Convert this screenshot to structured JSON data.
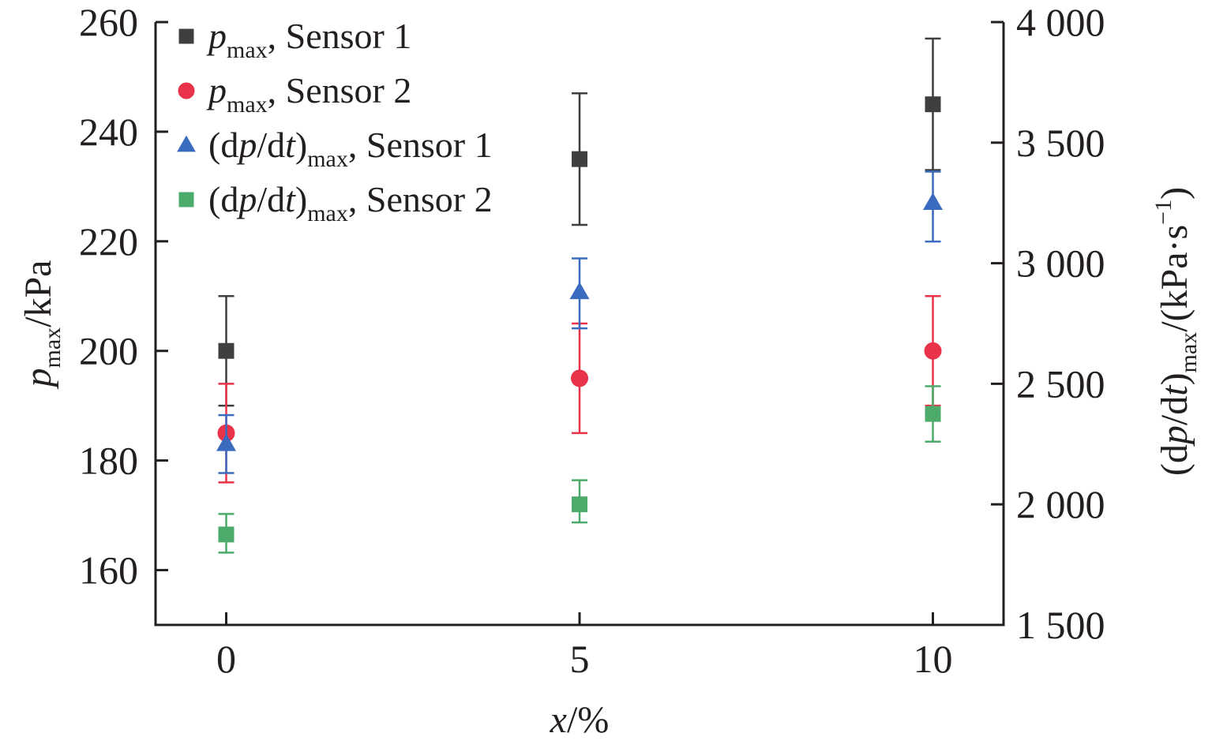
{
  "chart_data": {
    "type": "scatter",
    "title": "",
    "x": [
      0,
      5,
      10
    ],
    "xlabel": {
      "var": "x",
      "rest": "/%"
    },
    "ylabel_left": {
      "var": "p",
      "sub": "max",
      "rest": "/kPa"
    },
    "ylabel_right": {
      "pre": "(d",
      "var": "p",
      "mid": "/d",
      "var2": "t",
      "post": ")",
      "sub": "max",
      "rest": "/(kPa·s",
      "sup": "−1",
      "end": ")"
    },
    "xlim": [
      -1,
      11
    ],
    "ylim_left": [
      150,
      260
    ],
    "ylim_right": [
      1500,
      4000
    ],
    "xticks": [
      0,
      5,
      10
    ],
    "xtick_labels": [
      "0",
      "5",
      "10"
    ],
    "yticks_left": [
      160,
      180,
      200,
      220,
      240,
      260
    ],
    "yticks_left_labels": [
      "160",
      "180",
      "200",
      "220",
      "240",
      "260"
    ],
    "yticks_right": [
      1500,
      2000,
      2500,
      3000,
      3500,
      4000
    ],
    "yticks_right_labels": [
      "1 500",
      "2 000",
      "2 500",
      "3 000",
      "3 500",
      "4 000"
    ],
    "legend_position": "top-left",
    "grid": false,
    "series": [
      {
        "name": "pmax, Sensor 1",
        "legend": {
          "pre": "",
          "var": "p",
          "mid": "",
          "var2": "",
          "post": "",
          "sub": "max",
          "rest": ", Sensor 1"
        },
        "axis": "left",
        "marker": "square",
        "color": "#3f3f3f",
        "values": [
          200,
          235,
          245
        ],
        "err_low": [
          190,
          223,
          233
        ],
        "err_high": [
          210,
          247,
          257
        ]
      },
      {
        "name": "pmax, Sensor 2",
        "legend": {
          "pre": "",
          "var": "p",
          "mid": "",
          "var2": "",
          "post": "",
          "sub": "max",
          "rest": ", Sensor 2"
        },
        "axis": "left",
        "marker": "circle",
        "color": "#e8334a",
        "values": [
          185,
          195,
          200
        ],
        "err_low": [
          176,
          185,
          190
        ],
        "err_high": [
          194,
          205,
          210
        ]
      },
      {
        "name": "(dp/dt)max, Sensor 1",
        "legend": {
          "pre": "(d",
          "var": "p",
          "mid": "/d",
          "var2": "t",
          "post": ")",
          "sub": "max",
          "rest": ", Sensor 1"
        },
        "axis": "right",
        "marker": "triangle",
        "color": "#3b6bbf",
        "values": [
          2250,
          2880,
          3250
        ],
        "err_low": [
          2130,
          2730,
          3090
        ],
        "err_high": [
          2370,
          3020,
          3380
        ]
      },
      {
        "name": "(dp/dt)max, Sensor 2",
        "legend": {
          "pre": "(d",
          "var": "p",
          "mid": "/d",
          "var2": "t",
          "post": ")",
          "sub": "max",
          "rest": ", Sensor 2"
        },
        "axis": "right",
        "marker": "square",
        "color": "#4cab6a",
        "values": [
          1875,
          2000,
          2375
        ],
        "err_low": [
          1800,
          1925,
          2260
        ],
        "err_high": [
          1960,
          2100,
          2490
        ]
      }
    ]
  }
}
